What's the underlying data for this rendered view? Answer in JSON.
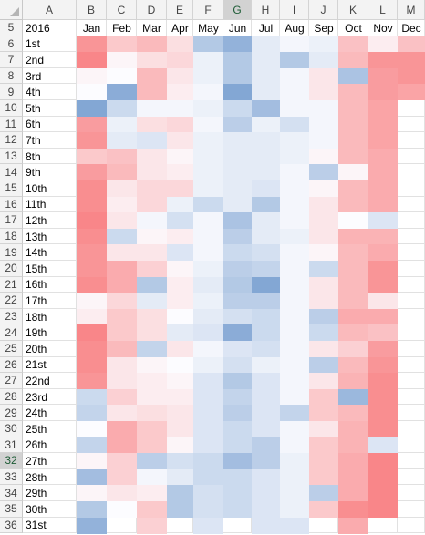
{
  "columns": [
    "A",
    "B",
    "C",
    "D",
    "E",
    "F",
    "G",
    "H",
    "I",
    "J",
    "K",
    "L",
    "M"
  ],
  "selected_column": "G",
  "selected_row": "32",
  "rows": [
    "5",
    "6",
    "7",
    "8",
    "9",
    "10",
    "11",
    "12",
    "13",
    "14",
    "15",
    "16",
    "17",
    "18",
    "19",
    "20",
    "21",
    "22",
    "23",
    "24",
    "25",
    "26",
    "27",
    "28",
    "29",
    "30",
    "31",
    "32",
    "33",
    "34",
    "35",
    "36"
  ],
  "year_label": "2016",
  "months": [
    "Jan",
    "Feb",
    "Mar",
    "Apr",
    "May",
    "Jun",
    "Jul",
    "Aug",
    "Sep",
    "Oct",
    "Nov",
    "Dec"
  ],
  "days": [
    "1st",
    "2nd",
    "3rd",
    "4th",
    "5th",
    "6th",
    "7th",
    "8th",
    "9th",
    "10th",
    "11th",
    "12th",
    "13th",
    "14th",
    "15th",
    "16th",
    "17th",
    "18th",
    "19th",
    "20th",
    "21st",
    "22nd",
    "23rd",
    "24th",
    "25th",
    "26th",
    "27th",
    "28th",
    "29th",
    "30th",
    "31st"
  ],
  "palette": {
    "strong_red": "#f8696b",
    "white": "#fcfcff",
    "strong_blue": "#5a8ac6"
  },
  "heat": [
    [
      0.7,
      0.35,
      0.45,
      0.2,
      -0.45,
      -0.65,
      -0.15,
      -0.05,
      -0.1,
      0.4,
      0.1,
      0.4
    ],
    [
      0.8,
      0.05,
      0.2,
      0.25,
      -0.1,
      -0.45,
      -0.15,
      -0.45,
      -0.15,
      0.45,
      0.7,
      0.7
    ],
    [
      0.05,
      0.0,
      0.45,
      0.15,
      -0.1,
      -0.45,
      -0.15,
      -0.05,
      0.15,
      -0.5,
      0.65,
      0.7
    ],
    [
      0.0,
      -0.7,
      0.45,
      0.1,
      -0.05,
      -0.75,
      -0.15,
      -0.05,
      0.15,
      0.45,
      0.65,
      0.6
    ],
    [
      -0.75,
      -0.3,
      -0.05,
      -0.05,
      -0.1,
      -0.3,
      -0.55,
      -0.05,
      -0.05,
      0.45,
      0.6,
      null
    ],
    [
      0.65,
      -0.1,
      0.2,
      0.25,
      -0.05,
      -0.4,
      -0.1,
      -0.25,
      -0.05,
      0.45,
      0.6,
      null
    ],
    [
      0.7,
      -0.15,
      -0.2,
      0.15,
      -0.1,
      -0.15,
      -0.15,
      -0.1,
      -0.05,
      0.45,
      0.6,
      null
    ],
    [
      0.35,
      0.4,
      0.15,
      0.05,
      -0.1,
      -0.15,
      -0.15,
      -0.1,
      0.05,
      0.45,
      0.55,
      null
    ],
    [
      0.65,
      0.45,
      0.15,
      0.1,
      -0.1,
      -0.15,
      -0.15,
      -0.05,
      -0.4,
      0.05,
      0.55,
      null
    ],
    [
      0.75,
      0.15,
      0.25,
      0.25,
      -0.1,
      -0.15,
      -0.2,
      -0.05,
      0.05,
      0.45,
      0.55,
      null
    ],
    [
      0.75,
      0.1,
      0.25,
      -0.1,
      -0.3,
      -0.15,
      -0.45,
      -0.05,
      0.15,
      0.45,
      0.55,
      null
    ],
    [
      0.8,
      0.15,
      -0.05,
      -0.25,
      -0.05,
      -0.5,
      -0.15,
      -0.05,
      0.15,
      0.0,
      -0.2,
      null
    ],
    [
      0.75,
      -0.3,
      0.05,
      0.1,
      -0.05,
      -0.4,
      -0.15,
      -0.1,
      0.15,
      0.5,
      0.5,
      null
    ],
    [
      0.7,
      0.15,
      0.15,
      -0.2,
      -0.05,
      -0.3,
      -0.25,
      -0.05,
      0.05,
      0.45,
      0.55,
      null
    ],
    [
      0.7,
      0.55,
      0.3,
      0.05,
      -0.1,
      -0.4,
      -0.35,
      -0.05,
      -0.3,
      0.45,
      0.7,
      null
    ],
    [
      0.75,
      0.55,
      -0.45,
      0.1,
      -0.15,
      -0.45,
      -0.75,
      -0.05,
      0.15,
      0.45,
      0.7,
      null
    ],
    [
      0.05,
      0.25,
      -0.15,
      0.1,
      -0.1,
      -0.4,
      -0.4,
      -0.05,
      0.15,
      0.45,
      0.15,
      null
    ],
    [
      0.1,
      0.35,
      0.2,
      0.0,
      -0.15,
      -0.25,
      -0.3,
      -0.05,
      -0.4,
      0.55,
      0.55,
      null
    ],
    [
      0.8,
      0.35,
      0.2,
      -0.15,
      -0.2,
      -0.7,
      -0.3,
      -0.05,
      -0.3,
      0.45,
      0.4,
      null
    ],
    [
      0.75,
      0.45,
      -0.35,
      0.15,
      -0.05,
      -0.2,
      -0.25,
      -0.05,
      0.15,
      0.3,
      0.65,
      null
    ],
    [
      0.75,
      0.15,
      0.05,
      0.0,
      -0.1,
      -0.25,
      -0.1,
      -0.05,
      -0.4,
      0.45,
      0.7,
      null
    ],
    [
      0.7,
      0.15,
      0.1,
      0.05,
      -0.2,
      -0.45,
      -0.2,
      -0.05,
      0.15,
      0.5,
      0.75,
      null
    ],
    [
      -0.3,
      0.3,
      0.1,
      0.1,
      -0.2,
      -0.35,
      -0.2,
      -0.05,
      0.35,
      -0.6,
      0.75,
      null
    ],
    [
      -0.35,
      0.15,
      0.2,
      0.15,
      -0.2,
      -0.4,
      -0.2,
      -0.35,
      0.35,
      0.45,
      0.75,
      null
    ],
    [
      0.0,
      0.55,
      0.35,
      0.15,
      -0.2,
      -0.3,
      -0.2,
      -0.05,
      0.15,
      0.5,
      0.75,
      null
    ],
    [
      -0.35,
      0.55,
      0.35,
      0.05,
      -0.2,
      -0.3,
      -0.4,
      -0.05,
      0.35,
      0.5,
      -0.2,
      null
    ],
    [
      0.05,
      0.3,
      -0.4,
      -0.25,
      -0.3,
      -0.55,
      -0.4,
      -0.1,
      0.35,
      0.55,
      0.8,
      null
    ],
    [
      -0.55,
      0.3,
      -0.05,
      -0.15,
      -0.3,
      -0.3,
      -0.2,
      -0.1,
      0.35,
      0.55,
      0.8,
      null
    ],
    [
      0.05,
      0.15,
      0.1,
      -0.45,
      -0.25,
      -0.3,
      -0.2,
      -0.1,
      -0.4,
      0.55,
      0.8,
      null
    ],
    [
      -0.45,
      0.0,
      0.35,
      -0.45,
      -0.25,
      -0.3,
      -0.2,
      -0.1,
      0.35,
      0.75,
      0.8,
      null
    ],
    [
      -0.65,
      null,
      0.3,
      null,
      -0.2,
      null,
      -0.2,
      -0.2,
      null,
      0.55,
      null,
      null
    ]
  ]
}
